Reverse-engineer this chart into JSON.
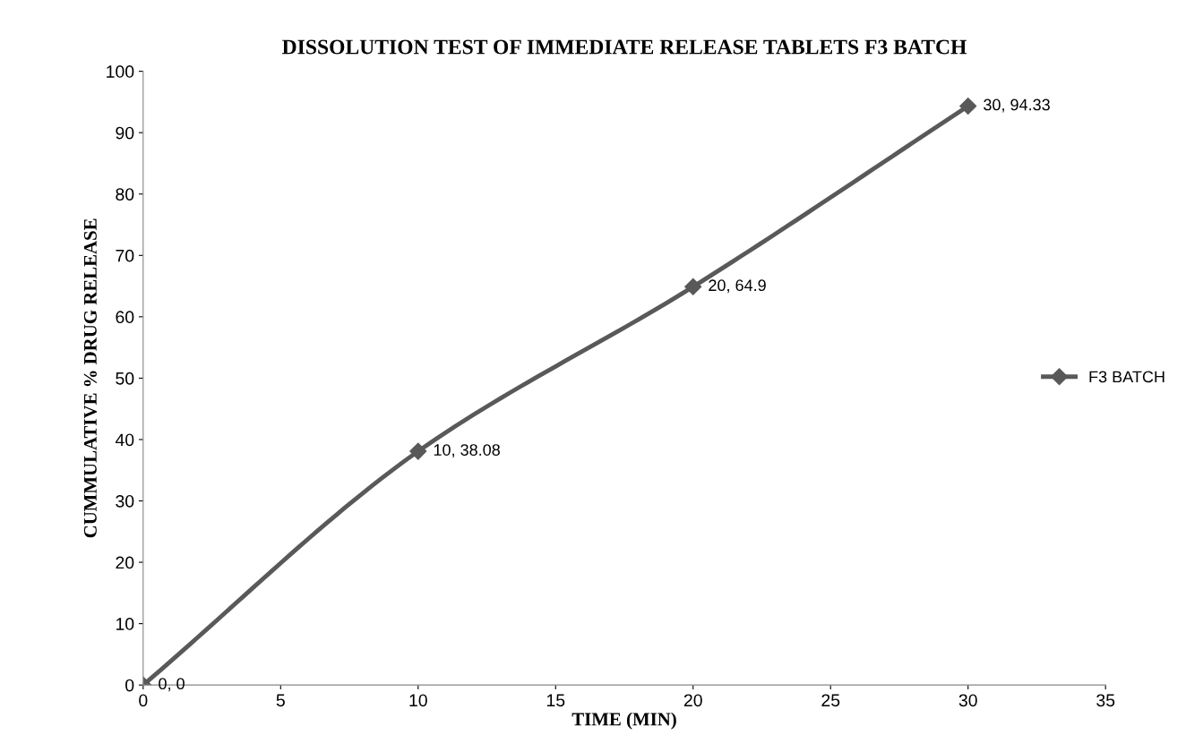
{
  "chart_data": {
    "type": "line",
    "title": "DISSOLUTION TEST OF IMMEDIATE RELEASE TABLETS F3 BATCH",
    "xlabel": "TIME (MIN)",
    "ylabel": "CUMMULATIVE % DRUG RELEASE",
    "x": [
      0,
      10,
      20,
      30
    ],
    "series": [
      {
        "name": "F3 BATCH",
        "color": "#595959",
        "values": [
          0,
          38.08,
          64.9,
          94.33
        ],
        "value_labels": [
          "0, 0",
          "10, 38.08",
          "20, 64.9",
          "30, 94.33"
        ]
      }
    ],
    "xlim": [
      0,
      35
    ],
    "xticks": [
      0,
      5,
      10,
      15,
      20,
      25,
      30,
      35
    ],
    "ylim": [
      0,
      100
    ],
    "yticks": [
      0,
      10,
      20,
      30,
      40,
      50,
      60,
      70,
      80,
      90,
      100
    ],
    "grid": false,
    "legend": "right",
    "marker": "diamond",
    "line_style": "solid"
  }
}
